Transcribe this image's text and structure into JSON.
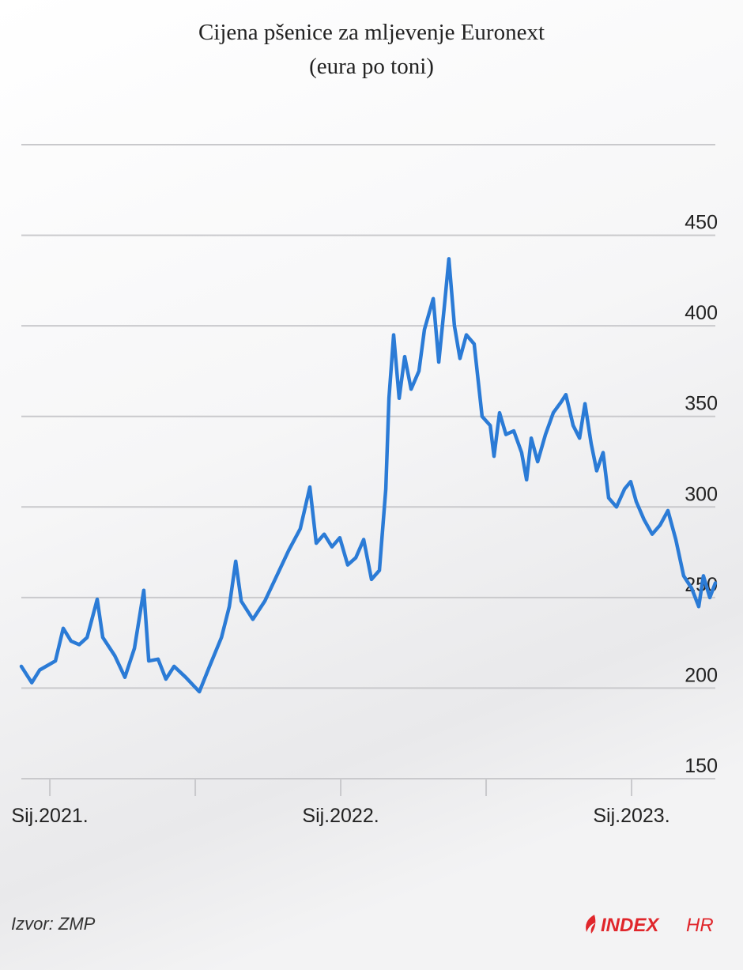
{
  "chart_data": {
    "type": "line",
    "title": "Cijena pšenice za mljevenje Euronext",
    "subtitle": "(eura po toni)",
    "x": [
      2020.902,
      2020.938,
      2020.965,
      2021.019,
      2021.046,
      2021.073,
      2021.101,
      2021.128,
      2021.163,
      2021.182,
      2021.223,
      2021.258,
      2021.291,
      2021.323,
      2021.34,
      2021.372,
      2021.399,
      2021.427,
      2021.467,
      2021.514,
      2021.549,
      2021.59,
      2021.617,
      2021.639,
      2021.658,
      2021.698,
      2021.739,
      2021.78,
      2021.821,
      2021.861,
      2021.894,
      2021.916,
      2021.943,
      2021.97,
      2021.997,
      2022.024,
      2022.052,
      2022.079,
      2022.106,
      2022.133,
      2022.155,
      2022.166,
      2022.182,
      2022.201,
      2022.22,
      2022.242,
      2022.269,
      2022.288,
      2022.318,
      2022.337,
      2022.356,
      2022.372,
      2022.391,
      2022.41,
      2022.432,
      2022.459,
      2022.486,
      2022.514,
      2022.527,
      2022.546,
      2022.568,
      2022.595,
      2022.622,
      2022.639,
      2022.655,
      2022.677,
      2022.704,
      2022.731,
      2022.758,
      2022.774,
      2022.799,
      2022.821,
      2022.84,
      2022.861,
      2022.88,
      2022.902,
      2022.921,
      2022.948,
      2022.976,
      2022.997,
      2023.016,
      2023.043,
      2023.071,
      2023.098,
      2023.125,
      2023.152,
      2023.179,
      2023.207,
      2023.231,
      2023.247,
      2023.269,
      2023.288
    ],
    "series": [
      {
        "color": "#2b7bd6",
        "values": [
          212,
          203,
          210,
          215,
          233,
          226,
          224,
          228,
          249,
          228,
          218,
          206,
          222,
          254,
          215,
          216,
          205,
          212,
          206,
          198,
          212,
          228,
          245,
          270,
          248,
          238,
          248,
          262,
          276,
          288,
          311,
          280,
          285,
          278,
          283,
          268,
          272,
          282,
          260,
          265,
          310,
          360,
          395,
          360,
          383,
          365,
          375,
          398,
          415,
          380,
          410,
          437,
          400,
          382,
          395,
          390,
          350,
          345,
          328,
          352,
          340,
          342,
          330,
          315,
          338,
          325,
          340,
          352,
          358,
          362,
          345,
          338,
          357,
          335,
          320,
          330,
          305,
          300,
          310,
          314,
          303,
          293,
          285,
          290,
          298,
          282,
          262,
          255,
          245,
          262,
          250,
          258
        ]
      }
    ],
    "xlim": [
      2020.902,
      2023.288
    ],
    "xticks": [
      {
        "value": 2021,
        "label": "Sij.2021."
      },
      {
        "value": 2022,
        "label": "Sij.2022."
      },
      {
        "value": 2023,
        "label": "Sij.2023."
      }
    ],
    "xminorticks": [
      2021.5,
      2022.5
    ],
    "ylim": [
      150,
      500
    ],
    "yticks": [
      150,
      200,
      250,
      300,
      350,
      400,
      450
    ],
    "grid": true
  },
  "footer": {
    "source": "Izvor: ZMP",
    "logo_main": "INDEX",
    "logo_suffix": "HR"
  }
}
